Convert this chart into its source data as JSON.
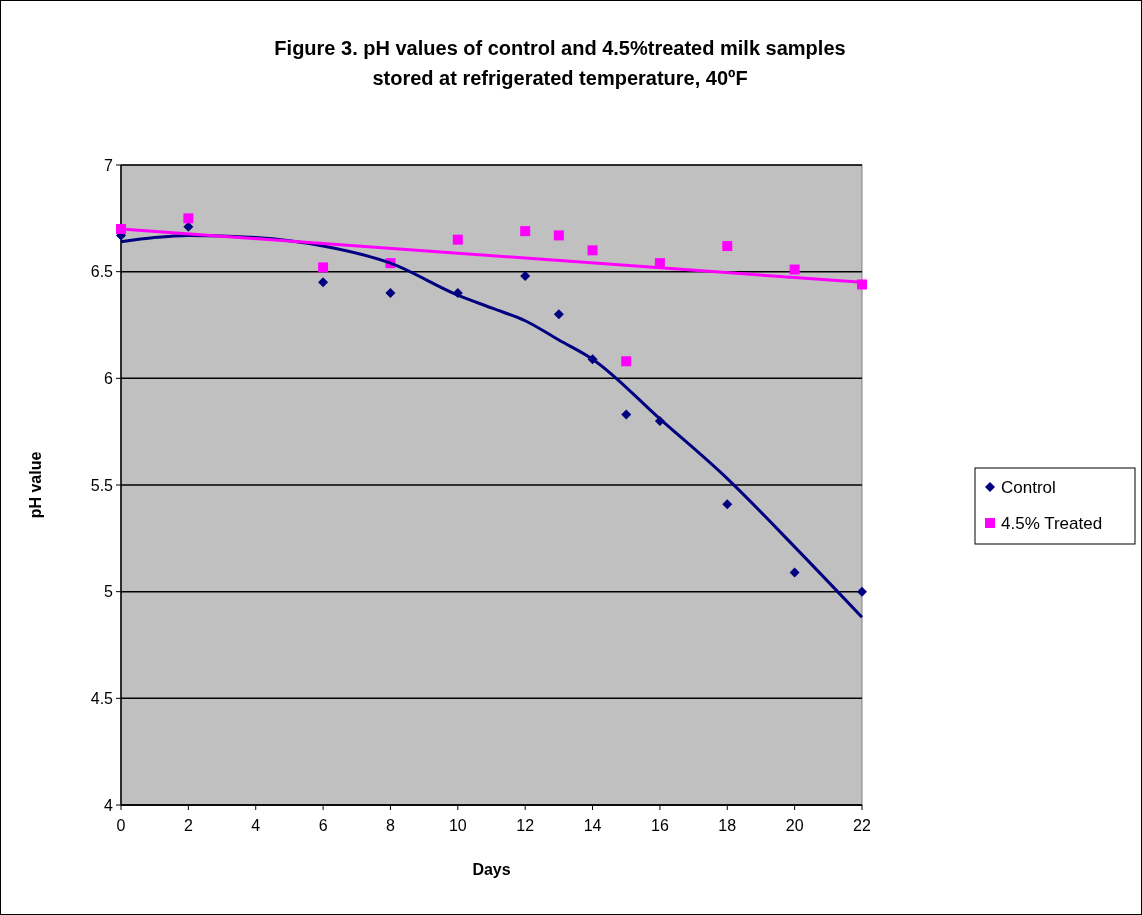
{
  "chart_data": {
    "type": "scatter",
    "title": "Figure 3.  pH values of  control and 4.5%treated milk samples stored at refrigerated temperature, 40ºF",
    "xlabel": "Days",
    "ylabel": "pH value",
    "x": [
      0,
      2,
      6,
      8,
      10,
      12,
      13,
      14,
      15,
      16,
      18,
      20,
      22
    ],
    "series": [
      {
        "name": "Control",
        "color": "#000080",
        "marker": "diamond",
        "values": [
          6.67,
          6.71,
          6.45,
          6.4,
          6.4,
          6.48,
          6.3,
          6.09,
          5.83,
          5.8,
          5.41,
          5.09,
          5.0
        ]
      },
      {
        "name": "4.5% Treated",
        "color": "#ff00ff",
        "marker": "square",
        "values": [
          6.7,
          6.75,
          6.52,
          6.54,
          6.65,
          6.69,
          6.67,
          6.6,
          6.08,
          6.54,
          6.62,
          6.51,
          6.44
        ]
      },
      {
        "type": "line",
        "color": "#000080",
        "marker": "none",
        "x": [
          0,
          1,
          2,
          4,
          6,
          8,
          10,
          11,
          12,
          13,
          14,
          16,
          18,
          20,
          22
        ],
        "values": [
          6.64,
          6.66,
          6.67,
          6.66,
          6.62,
          6.54,
          6.39,
          6.33,
          6.27,
          6.18,
          6.09,
          5.81,
          5.53,
          5.21,
          4.88
        ]
      },
      {
        "type": "line",
        "color": "#ff00ff",
        "marker": "none",
        "x": [
          0,
          22
        ],
        "values": [
          6.7,
          6.45
        ]
      }
    ],
    "xlim": [
      0,
      22
    ],
    "xticks": [
      0,
      2,
      4,
      6,
      8,
      10,
      12,
      14,
      16,
      18,
      20,
      22
    ],
    "ylim": [
      4,
      7
    ],
    "yticks": [
      4,
      4.5,
      5,
      5.5,
      6,
      6.5,
      7
    ],
    "grid": "y",
    "legend": "right"
  }
}
